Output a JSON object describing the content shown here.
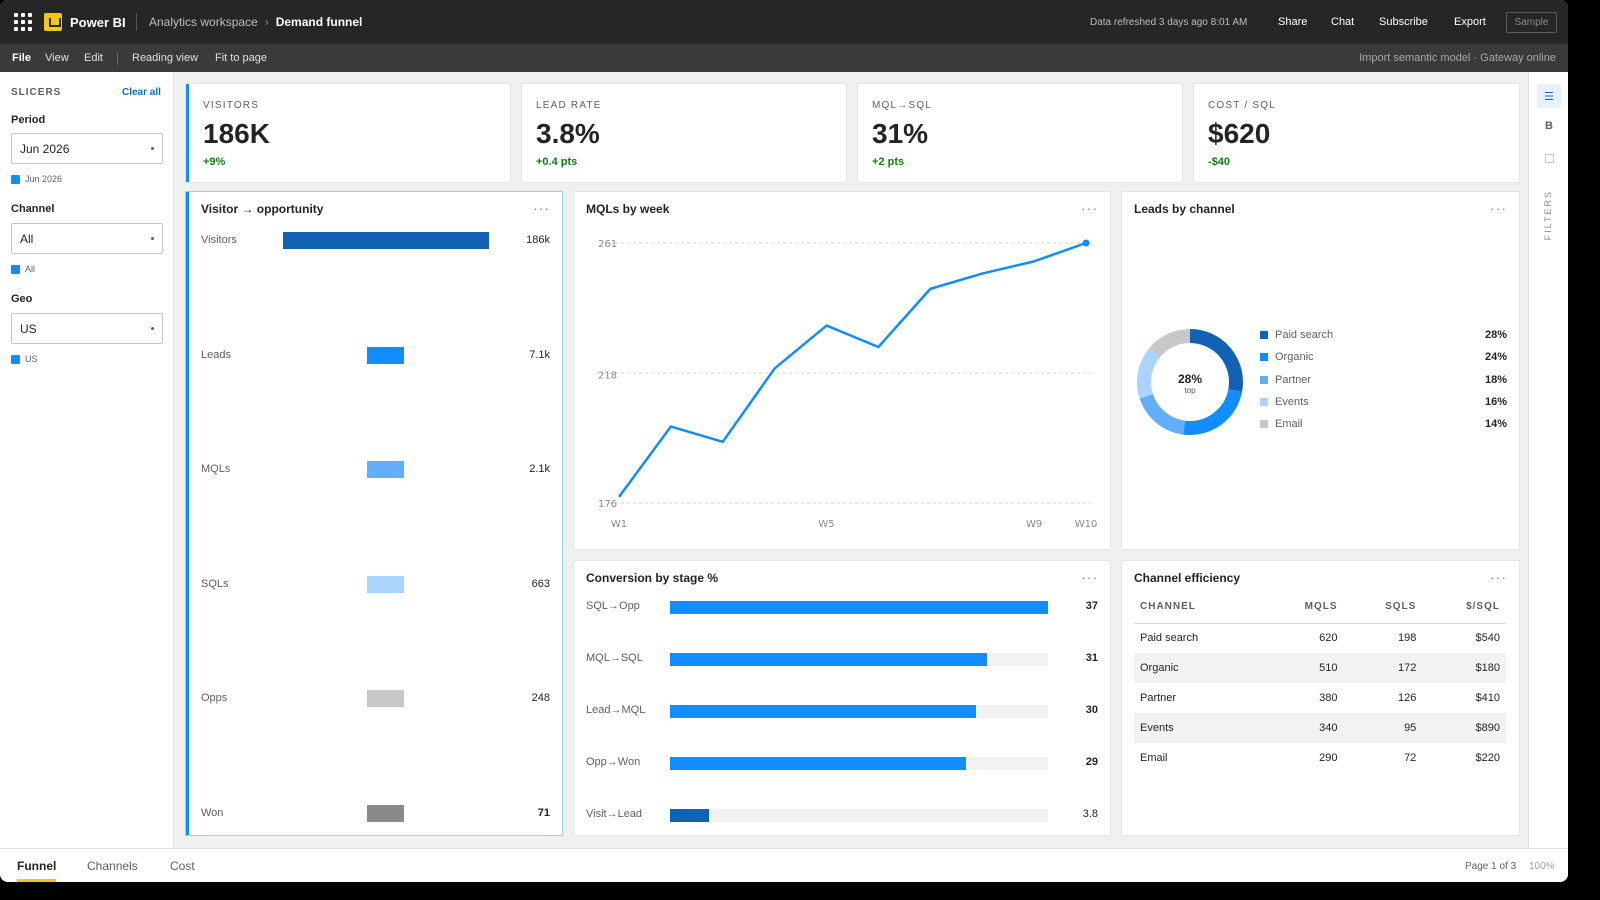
{
  "topbar": {
    "app_name": "Power BI",
    "workspace": "Analytics workspace",
    "chevron": "›",
    "report": "Demand funnel",
    "refresh": "Data refreshed 3 days ago 8:01 AM",
    "share": "Share",
    "chat": "Chat",
    "subscribe": "Subscribe",
    "export": "Export",
    "sample": "Sample"
  },
  "menubar": {
    "file": "File",
    "view": "View",
    "edit": "Edit",
    "reading_view": "Reading view",
    "fit_to_page": "Fit to page",
    "status": "Import semantic model · Gateway online"
  },
  "slicers": {
    "title": "SLICERS",
    "clear": "Clear all",
    "items": [
      {
        "label": "Period",
        "value": "Jun 2026",
        "chip": "Jun 2026"
      },
      {
        "label": "Channel",
        "value": "All",
        "chip": "All"
      },
      {
        "label": "Geo",
        "value": "US",
        "chip": "US"
      }
    ]
  },
  "kpis": [
    {
      "label": "VISITORS",
      "value": "186K",
      "delta": "+9%"
    },
    {
      "label": "LEAD RATE",
      "value": "3.8%",
      "delta": "+0.4 pts"
    },
    {
      "label": "MQL→SQL",
      "value": "31%",
      "delta": "+2 pts"
    },
    {
      "label": "COST / SQL",
      "value": "$620",
      "delta": "-$40"
    }
  ],
  "visuals": {
    "more": "···",
    "funnel_title": "Visitor → opportunity",
    "line_title": "MQLs by week",
    "donut_title": "Leads by channel",
    "conv_title": "Conversion by stage %",
    "eff_title": "Channel efficiency"
  },
  "chart_data": [
    {
      "type": "bar",
      "title": "Visitor → opportunity",
      "categories": [
        "Visitors",
        "Leads",
        "MQLs",
        "SQLs",
        "Opps",
        "Won"
      ],
      "values": [
        186000,
        7100,
        2100,
        663,
        248,
        71
      ],
      "labels": [
        "186k",
        "7.1k",
        "2.1k",
        "663",
        "248",
        "71"
      ],
      "colors": [
        "#1262b3",
        "#118dff",
        "#62aefb",
        "#aad4fd",
        "#c8c8c8",
        "#8a8a8a"
      ]
    },
    {
      "type": "line",
      "title": "MQLs by week",
      "x": [
        "W1",
        "W2",
        "W3",
        "W4",
        "W5",
        "W6",
        "W7",
        "W8",
        "W9",
        "W10"
      ],
      "x_tick_labels": [
        "W1",
        "W5",
        "W9",
        "W10"
      ],
      "y": [
        178,
        201,
        196,
        220,
        234,
        227,
        246,
        251,
        255,
        261
      ],
      "y_ticks": [
        "176",
        "218",
        "261"
      ],
      "ylim": [
        176,
        261
      ],
      "color": "#118dff",
      "grid": true
    },
    {
      "type": "pie",
      "title": "Leads by channel",
      "center_value": "28%",
      "center_sub": "top",
      "labels": [
        "Paid search",
        "Organic",
        "Partner",
        "Events",
        "Email"
      ],
      "values": [
        28,
        24,
        18,
        16,
        14
      ],
      "value_labels": [
        "28%",
        "24%",
        "18%",
        "16%",
        "14%"
      ],
      "colors": [
        "#1262b3",
        "#118dff",
        "#62aefb",
        "#aad4fd",
        "#c8c8c8"
      ]
    },
    {
      "type": "bar",
      "title": "Conversion by stage %",
      "categories": [
        "SQL→Opp",
        "MQL→SQL",
        "Lead→MQL",
        "Opp→Won",
        "Visit→Lead"
      ],
      "values": [
        37,
        31,
        30,
        29,
        3.8
      ],
      "labels": [
        "37",
        "31",
        "30",
        "29",
        "3.8"
      ],
      "xlim": [
        0,
        37
      ],
      "colors": [
        "#118dff",
        "#118dff",
        "#118dff",
        "#118dff",
        "#1262b3"
      ]
    },
    {
      "type": "table",
      "title": "Channel efficiency",
      "columns": [
        "CHANNEL",
        "MQLS",
        "SQLS",
        "$/SQL"
      ],
      "rows": [
        [
          "Paid search",
          "620",
          "198",
          "$540"
        ],
        [
          "Organic",
          "510",
          "172",
          "$180"
        ],
        [
          "Partner",
          "380",
          "126",
          "$410"
        ],
        [
          "Events",
          "340",
          "95",
          "$890"
        ],
        [
          "Email",
          "290",
          "72",
          "$220"
        ]
      ]
    }
  ],
  "rail": {
    "icon_b": "B",
    "filters": "FILTERS"
  },
  "tabs": [
    "Funnel",
    "Channels",
    "Cost"
  ],
  "footer": {
    "page": "Page 1 of 3",
    "zoom": "100%"
  },
  "colors": {
    "accent": "#118dff",
    "brand_yellow": "#f2c811",
    "positive": "#107c10"
  }
}
